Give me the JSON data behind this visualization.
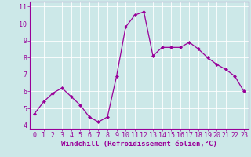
{
  "x": [
    0,
    1,
    2,
    3,
    4,
    5,
    6,
    7,
    8,
    9,
    10,
    11,
    12,
    13,
    14,
    15,
    16,
    17,
    18,
    19,
    20,
    21,
    22,
    23
  ],
  "y": [
    4.7,
    5.4,
    5.9,
    6.2,
    5.7,
    5.2,
    4.5,
    4.2,
    4.5,
    6.9,
    9.8,
    10.5,
    10.7,
    8.1,
    8.6,
    8.6,
    8.6,
    8.9,
    8.5,
    8.0,
    7.6,
    7.3,
    6.9,
    6.0
  ],
  "line_color": "#990099",
  "marker": "D",
  "marker_size": 2.0,
  "bg_color": "#cce8e8",
  "grid_color": "#ffffff",
  "xlabel": "Windchill (Refroidissement éolien,°C)",
  "xlabel_color": "#990099",
  "xlabel_fontsize": 6.5,
  "tick_color": "#990099",
  "tick_fontsize": 6,
  "yticks": [
    4,
    5,
    6,
    7,
    8,
    9,
    10,
    11
  ],
  "xticks": [
    0,
    1,
    2,
    3,
    4,
    5,
    6,
    7,
    8,
    9,
    10,
    11,
    12,
    13,
    14,
    15,
    16,
    17,
    18,
    19,
    20,
    21,
    22,
    23
  ],
  "ylim": [
    3.8,
    11.3
  ],
  "xlim": [
    -0.5,
    23.5
  ],
  "spine_color": "#990099",
  "linewidth": 0.9
}
